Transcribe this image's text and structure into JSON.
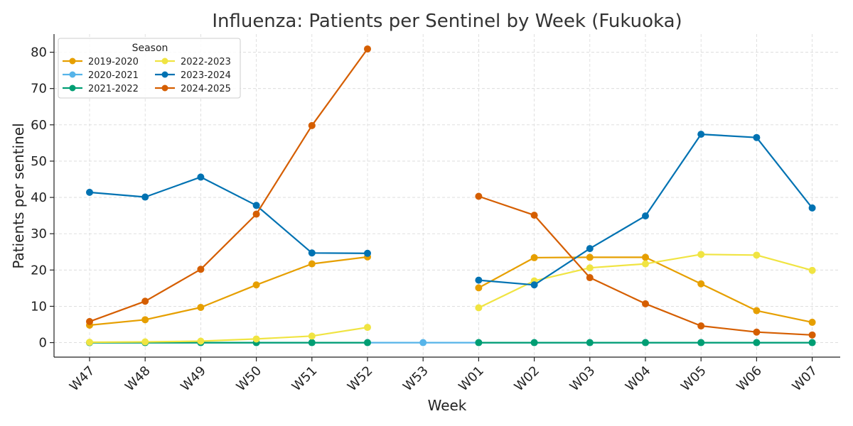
{
  "chart_data": {
    "type": "line",
    "title": "Influenza: Patients per Sentinel by Week (Fukuoka)",
    "xlabel": "Week",
    "ylabel": "Patients per sentinel",
    "categories": [
      "W47",
      "W48",
      "W49",
      "W50",
      "W51",
      "W52",
      "W53",
      "W01",
      "W02",
      "W03",
      "W04",
      "W05",
      "W06",
      "W07"
    ],
    "ylim": [
      -4,
      85
    ],
    "yticks": [
      0,
      10,
      20,
      30,
      40,
      50,
      60,
      70,
      80
    ],
    "grid": true,
    "legend": {
      "title": "Season",
      "placement": "top-left",
      "columns": 2
    },
    "series": [
      {
        "name": "2019-2020",
        "color": "#E69F00",
        "values": [
          4.8,
          6.3,
          9.7,
          15.9,
          21.7,
          23.6,
          null,
          15.1,
          23.4,
          23.5,
          23.5,
          16.2,
          8.8,
          5.6
        ]
      },
      {
        "name": "2020-2021",
        "color": "#56B4E9",
        "values": [
          0,
          0,
          0,
          0,
          0,
          0,
          0,
          0,
          0,
          0,
          0,
          0,
          0,
          0
        ]
      },
      {
        "name": "2021-2022",
        "color": "#009E73",
        "values": [
          0,
          0,
          0,
          0,
          0,
          0,
          null,
          0,
          0,
          0,
          0,
          0,
          0,
          0
        ]
      },
      {
        "name": "2022-2023",
        "color": "#F0E442",
        "values": [
          0.1,
          0.2,
          0.4,
          1.0,
          1.8,
          4.2,
          null,
          9.6,
          17.0,
          20.6,
          21.7,
          24.3,
          24.1,
          19.9
        ]
      },
      {
        "name": "2023-2024",
        "color": "#0072B2",
        "values": [
          41.4,
          40.1,
          45.6,
          37.8,
          24.7,
          24.6,
          null,
          17.2,
          15.9,
          25.9,
          34.9,
          57.4,
          56.5,
          37.1
        ]
      },
      {
        "name": "2024-2025",
        "color": "#D55E00",
        "values": [
          5.8,
          11.4,
          20.2,
          35.4,
          59.8,
          80.9,
          null,
          40.3,
          35.1,
          17.9,
          10.7,
          4.6,
          2.9,
          2.1
        ]
      }
    ]
  }
}
